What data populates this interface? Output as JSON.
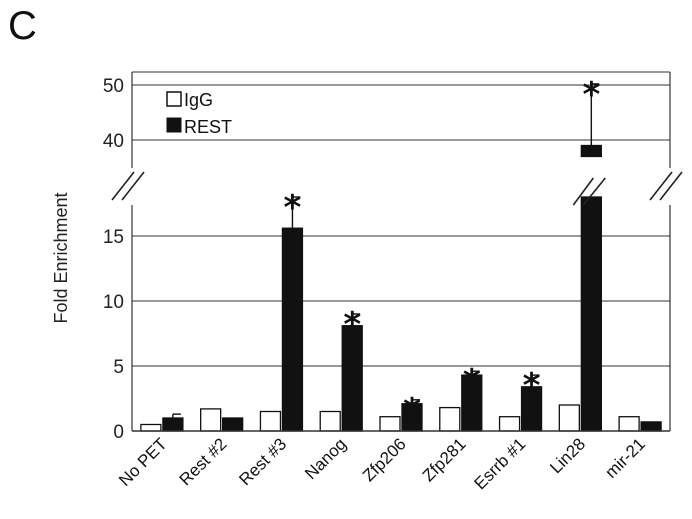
{
  "panel_label": "C",
  "chart_data": {
    "type": "bar",
    "ylabel": "Fold Enrichment",
    "categories": [
      "No PET",
      "Rest #2",
      "Rest #3",
      "Nanog",
      "Zfp206",
      "Zfp281",
      "Esrrb #1",
      "Lin28",
      "mir-21"
    ],
    "series": [
      {
        "name": "IgG",
        "color": "#ffffff",
        "values": [
          0.5,
          1.7,
          1.5,
          1.5,
          1.1,
          1.8,
          1.1,
          2.0,
          1.1
        ],
        "errors": [
          0,
          0,
          0,
          0,
          0,
          0,
          0,
          0,
          0
        ]
      },
      {
        "name": "REST",
        "color": "#111111",
        "values": [
          1.0,
          1.0,
          15.6,
          8.1,
          2.1,
          4.3,
          3.4,
          39.0,
          0.7
        ],
        "errors": [
          0.3,
          0,
          2.4,
          0.9,
          0.3,
          0.3,
          0.9,
          11.2,
          0
        ]
      }
    ],
    "significant": [
      false,
      false,
      true,
      true,
      true,
      true,
      true,
      true,
      false
    ],
    "significance_marker": "*",
    "axis_break": {
      "from": 18,
      "to": 35
    },
    "yticks_lower": [
      0,
      5,
      10,
      15
    ],
    "yticks_upper": [
      40,
      50
    ],
    "ylim": [
      0,
      51
    ],
    "grid": true,
    "legend_position": "top-left"
  }
}
